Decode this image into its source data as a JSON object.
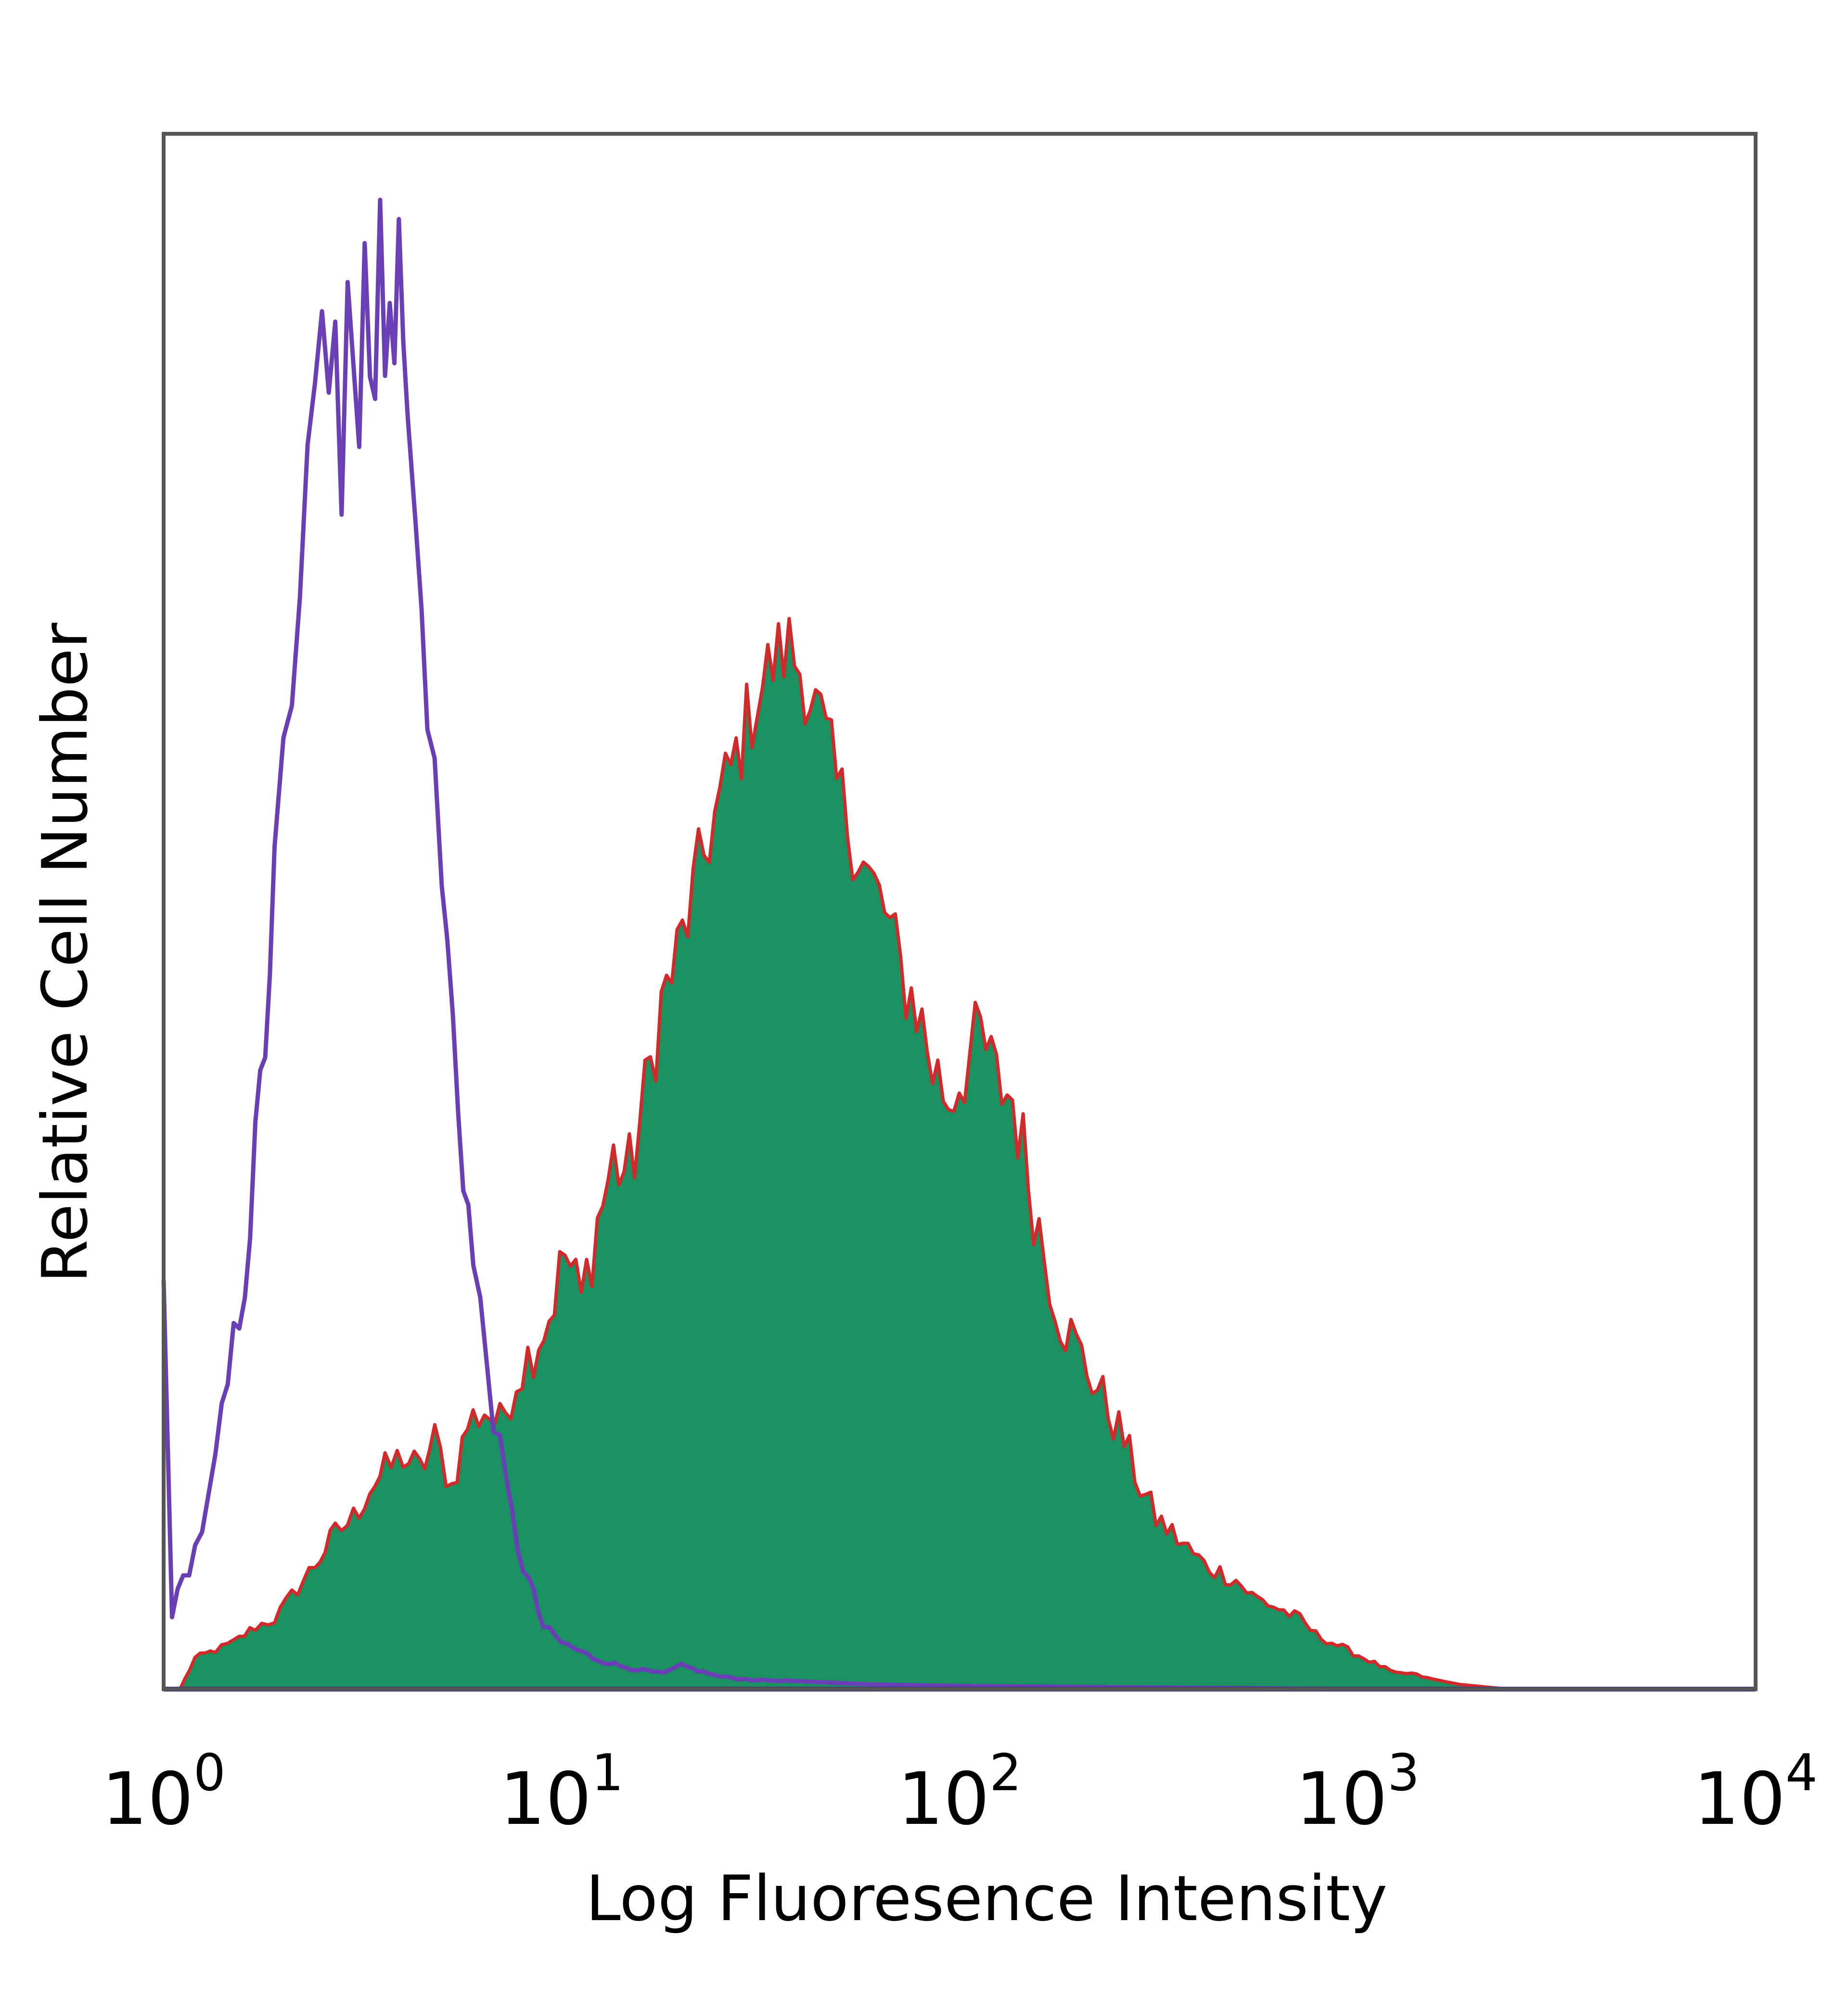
{
  "chart_data": {
    "type": "area",
    "title": "",
    "xlabel": "Log Fluoresence Intensity",
    "ylabel": "Relative Cell Number",
    "x_scale": "log",
    "xlim": [
      1,
      10000
    ],
    "ylim": [
      0,
      100
    ],
    "grid": false,
    "legend": "none",
    "x_ticks": [
      {
        "base": "10",
        "exp": "0",
        "value": 1
      },
      {
        "base": "10",
        "exp": "1",
        "value": 10
      },
      {
        "base": "10",
        "exp": "2",
        "value": 100
      },
      {
        "base": "10",
        "exp": "3",
        "value": 1000
      },
      {
        "base": "10",
        "exp": "4",
        "value": 10000
      }
    ],
    "series": [
      {
        "style": "outline",
        "color": "#6a3fb5",
        "x": [
          1.0,
          1.05,
          1.12,
          1.2,
          1.3,
          1.4,
          1.5,
          1.6,
          1.7,
          1.8,
          1.9,
          2.0,
          2.1,
          2.2,
          2.3,
          2.4,
          2.5,
          2.6,
          2.7,
          2.8,
          2.9,
          3.0,
          3.1,
          3.2,
          3.3,
          3.4,
          3.5,
          3.6,
          3.7,
          3.8,
          3.9,
          4.0,
          4.1,
          4.3,
          4.6,
          5.0,
          5.5,
          6.0,
          6.5,
          7.0,
          7.5,
          8.0,
          8.5,
          9.0,
          10.0,
          11.0,
          12.0,
          14.0,
          16.0,
          18.0,
          20.0,
          25.0,
          30.0,
          40.0,
          60.0,
          100.0,
          1000.0,
          10000.0
        ],
        "y": [
          26.0,
          5.0,
          7.0,
          9.0,
          12.0,
          17.0,
          22.0,
          27.0,
          34.0,
          42.0,
          52.0,
          60.0,
          62.0,
          72.0,
          78.0,
          82.0,
          87.0,
          85.0,
          90.0,
          78.0,
          92.0,
          86.0,
          80.0,
          93.0,
          87.0,
          84.0,
          95.0,
          82.0,
          91.0,
          88.0,
          96.0,
          85.0,
          82.0,
          74.0,
          64.0,
          52.0,
          38.0,
          27.0,
          21.0,
          15.0,
          11.0,
          8.0,
          6.0,
          4.0,
          3.0,
          2.5,
          2.0,
          1.5,
          1.2,
          1.0,
          1.5,
          0.8,
          0.6,
          0.5,
          0.3,
          0.2,
          0.0,
          0.0
        ]
      },
      {
        "style": "filled",
        "color": "#1a9160",
        "edge_color": "#d12a2a",
        "x": [
          1.1,
          1.2,
          1.35,
          1.5,
          1.7,
          1.9,
          2.1,
          2.4,
          2.7,
          3.0,
          3.3,
          3.6,
          4.0,
          4.4,
          4.8,
          5.3,
          5.8,
          6.4,
          7.0,
          7.7,
          8.5,
          9.3,
          10.2,
          11.2,
          12.3,
          13.5,
          14.8,
          16.2,
          17.8,
          19.5,
          21.4,
          23.5,
          25.8,
          28.3,
          31.0,
          34.0,
          37.3,
          40.9,
          44.8,
          49.1,
          53.9,
          59.1,
          64.8,
          71.1,
          78.0,
          85.5,
          93.8,
          102.9,
          112.9,
          123.8,
          135.8,
          148.9,
          163.3,
          179.1,
          196.4,
          215.4,
          236.2,
          259.1,
          284.2,
          311.7,
          341.9,
          375.0,
          411.3,
          451.1,
          494.8,
          542.7,
          595.2,
          652.8,
          716.0,
          785.3,
          861.3,
          944.7,
          1036.1,
          1136.4,
          1246.4,
          1367.1,
          1499.4,
          1644.5,
          1803.7,
          1978.3,
          2169.7,
          2379.7,
          2610.0
        ],
        "y": [
          0.0,
          2.0,
          2.5,
          3.0,
          4.0,
          4.5,
          6.0,
          8.0,
          10.0,
          11.0,
          13.0,
          14.0,
          15.0,
          14.0,
          16.0,
          13.0,
          17.0,
          18.0,
          17.0,
          20.0,
          22.0,
          24.0,
          28.0,
          25.0,
          30.0,
          34.0,
          33.0,
          38.0,
          44.0,
          47.0,
          51.0,
          55.0,
          58.0,
          61.0,
          64.0,
          66.0,
          67.0,
          65.0,
          62.0,
          58.0,
          55.0,
          52.0,
          50.0,
          46.0,
          44.0,
          40.0,
          38.0,
          40.0,
          42.0,
          39.0,
          38.0,
          33.0,
          28.0,
          24.0,
          22.0,
          20.0,
          18.0,
          16.0,
          13.0,
          11.0,
          10.0,
          9.0,
          8.0,
          7.5,
          7.0,
          6.0,
          5.5,
          5.0,
          4.5,
          3.5,
          3.0,
          2.5,
          2.0,
          1.5,
          1.0,
          1.0,
          0.7,
          0.5,
          0.3,
          0.2,
          0.1,
          0.0,
          0.0
        ]
      }
    ]
  }
}
